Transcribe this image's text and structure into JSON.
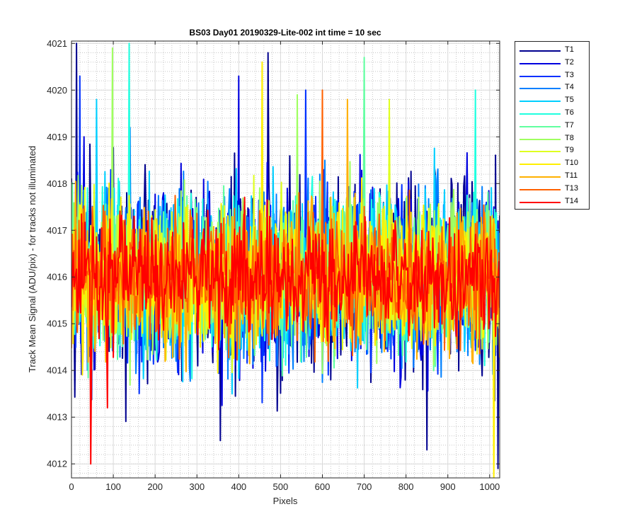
{
  "chart_data": {
    "type": "line",
    "title": "BS03 Day01 20190329-Lite-002 int time = 10 sec",
    "xlabel": "Pixels",
    "ylabel": "Track Mean Signal (ADU/pix) - for tracks not illuminated",
    "xlim": [
      0,
      1024
    ],
    "ylim": [
      4011.7,
      4021.05
    ],
    "xticks": [
      0,
      100,
      200,
      300,
      400,
      500,
      600,
      700,
      800,
      900,
      1000
    ],
    "yticks": [
      4012,
      4013,
      4014,
      4015,
      4016,
      4017,
      4018,
      4019,
      4020,
      4021
    ],
    "grid": "major and minor, dotted",
    "legend_location": "outside right, top",
    "series": [
      {
        "name": "T1",
        "color": "#00008f",
        "mean": 4016.0,
        "spread": 1.75,
        "extremes": [
          [
            12,
            4021.0
          ],
          [
            470,
            4020.8
          ],
          [
            355,
            4012.5
          ],
          [
            1020,
            4011.9
          ],
          [
            850,
            4012.3
          ]
        ]
      },
      {
        "name": "T2",
        "color": "#0000df",
        "mean": 4016.0,
        "spread": 1.6,
        "extremes": [
          [
            30,
            4019.0
          ],
          [
            400,
            4020.3
          ]
        ]
      },
      {
        "name": "T3",
        "color": "#0030ff",
        "mean": 4016.0,
        "spread": 1.5,
        "extremes": [
          [
            20,
            4020.3
          ],
          [
            560,
            4020.0
          ]
        ]
      },
      {
        "name": "T4",
        "color": "#0080ff",
        "mean": 4016.0,
        "spread": 1.45,
        "extremes": [
          [
            140,
            4019.2
          ]
        ]
      },
      {
        "name": "T5",
        "color": "#00cfff",
        "mean": 4016.0,
        "spread": 1.4,
        "extremes": [
          [
            60,
            4019.8
          ]
        ]
      },
      {
        "name": "T6",
        "color": "#20ffdf",
        "mean": 4016.0,
        "spread": 1.35,
        "extremes": [
          [
            138,
            4021.0
          ],
          [
            965,
            4020.0
          ]
        ]
      },
      {
        "name": "T7",
        "color": "#60ffa0",
        "mean": 4016.0,
        "spread": 1.3,
        "extremes": [
          [
            700,
            4020.7
          ]
        ]
      },
      {
        "name": "T8",
        "color": "#9fff60",
        "mean": 4016.0,
        "spread": 1.3,
        "extremes": [
          [
            97,
            4020.9
          ],
          [
            540,
            4019.9
          ]
        ]
      },
      {
        "name": "T9",
        "color": "#dfff20",
        "mean": 4016.0,
        "spread": 1.25,
        "extremes": [
          [
            760,
            4019.8
          ]
        ]
      },
      {
        "name": "T10",
        "color": "#ffef00",
        "mean": 4016.0,
        "spread": 1.2,
        "extremes": [
          [
            455,
            4020.6
          ],
          [
            1010,
            4011.7
          ]
        ]
      },
      {
        "name": "T11",
        "color": "#ffb000",
        "mean": 4016.0,
        "spread": 1.15,
        "extremes": [
          [
            660,
            4019.8
          ]
        ]
      },
      {
        "name": "T13",
        "color": "#ff6000",
        "mean": 4016.0,
        "spread": 1.1,
        "extremes": [
          [
            600,
            4020.0
          ]
        ]
      },
      {
        "name": "T14",
        "color": "#ff0000",
        "mean": 4016.0,
        "spread": 1.0,
        "extremes": [
          [
            45,
            4012.0
          ],
          [
            85,
            4013.2
          ]
        ]
      }
    ]
  }
}
